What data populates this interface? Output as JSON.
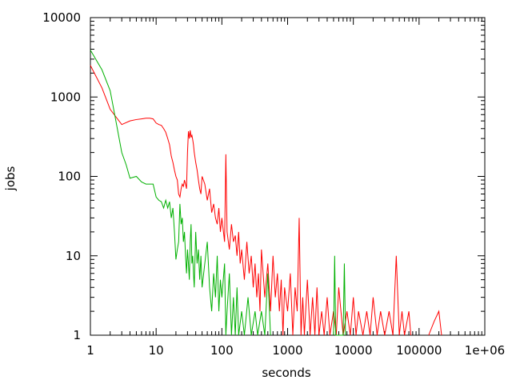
{
  "chart_data": {
    "type": "line",
    "xlabel": "seconds",
    "ylabel": "jobs",
    "xscale": "log",
    "yscale": "log",
    "xlim": [
      1,
      1000000
    ],
    "ylim": [
      1,
      10000
    ],
    "grid": false,
    "legend": "none",
    "x_tick_labels": [
      "1",
      "10",
      "100",
      "1000",
      "10000",
      "100000",
      "1e+06"
    ],
    "y_tick_labels": [
      "1",
      "10",
      "100",
      "1000",
      "10000"
    ],
    "series": [
      {
        "color": "#ff0000",
        "points": [
          [
            1,
            2500
          ],
          [
            1.5,
            1300
          ],
          [
            2,
            700
          ],
          [
            3,
            450
          ],
          [
            4,
            500
          ],
          [
            5,
            520
          ],
          [
            6,
            530
          ],
          [
            7,
            540
          ],
          [
            8,
            540
          ],
          [
            9,
            530
          ],
          [
            10,
            470
          ],
          [
            11,
            450
          ],
          [
            12,
            440
          ],
          [
            13,
            400
          ],
          [
            14,
            360
          ],
          [
            15,
            300
          ],
          [
            16,
            250
          ],
          [
            17,
            180
          ],
          [
            18,
            150
          ],
          [
            19,
            120
          ],
          [
            20,
            100
          ],
          [
            21,
            90
          ],
          [
            22,
            60
          ],
          [
            23,
            55
          ],
          [
            24,
            70
          ],
          [
            25,
            80
          ],
          [
            26,
            75
          ],
          [
            27,
            90
          ],
          [
            28,
            80
          ],
          [
            29,
            70
          ],
          [
            30,
            200
          ],
          [
            31,
            370
          ],
          [
            32,
            300
          ],
          [
            33,
            380
          ],
          [
            34,
            310
          ],
          [
            35,
            330
          ],
          [
            36,
            290
          ],
          [
            37,
            250
          ],
          [
            38,
            200
          ],
          [
            40,
            150
          ],
          [
            42,
            120
          ],
          [
            44,
            90
          ],
          [
            46,
            70
          ],
          [
            48,
            60
          ],
          [
            50,
            100
          ],
          [
            55,
            80
          ],
          [
            60,
            50
          ],
          [
            65,
            70
          ],
          [
            70,
            35
          ],
          [
            75,
            45
          ],
          [
            80,
            30
          ],
          [
            85,
            25
          ],
          [
            90,
            40
          ],
          [
            95,
            20
          ],
          [
            100,
            30
          ],
          [
            110,
            15
          ],
          [
            115,
            190
          ],
          [
            120,
            20
          ],
          [
            130,
            12
          ],
          [
            140,
            25
          ],
          [
            150,
            15
          ],
          [
            160,
            18
          ],
          [
            170,
            10
          ],
          [
            180,
            20
          ],
          [
            190,
            8
          ],
          [
            200,
            12
          ],
          [
            220,
            5
          ],
          [
            240,
            15
          ],
          [
            260,
            6
          ],
          [
            280,
            10
          ],
          [
            300,
            4
          ],
          [
            320,
            8
          ],
          [
            340,
            3
          ],
          [
            360,
            6
          ],
          [
            380,
            2
          ],
          [
            400,
            12
          ],
          [
            450,
            3
          ],
          [
            500,
            8
          ],
          [
            550,
            2
          ],
          [
            600,
            10
          ],
          [
            650,
            3
          ],
          [
            700,
            6
          ],
          [
            750,
            2
          ],
          [
            800,
            5
          ],
          [
            850,
            1
          ],
          [
            900,
            4
          ],
          [
            1000,
            2
          ],
          [
            1100,
            6
          ],
          [
            1200,
            1
          ],
          [
            1300,
            4
          ],
          [
            1400,
            2
          ],
          [
            1500,
            30
          ],
          [
            1600,
            1
          ],
          [
            1700,
            3
          ],
          [
            1800,
            1
          ],
          [
            2000,
            5
          ],
          [
            2200,
            1
          ],
          [
            2400,
            3
          ],
          [
            2600,
            1
          ],
          [
            2800,
            4
          ],
          [
            3000,
            1
          ],
          [
            3300,
            2
          ],
          [
            3600,
            1
          ],
          [
            4000,
            3
          ],
          [
            4400,
            1
          ],
          [
            5000,
            2
          ],
          [
            5500,
            1
          ],
          [
            6000,
            4
          ],
          [
            7000,
            1
          ],
          [
            8000,
            2
          ],
          [
            9000,
            1
          ],
          [
            10000,
            3
          ],
          [
            11000,
            1
          ],
          [
            12000,
            2
          ],
          [
            14000,
            1
          ],
          [
            16000,
            2
          ],
          [
            18000,
            1
          ],
          [
            20000,
            3
          ],
          [
            23000,
            1
          ],
          [
            26000,
            2
          ],
          [
            30000,
            1
          ],
          [
            35000,
            2
          ],
          [
            40000,
            1
          ],
          [
            45000,
            10
          ],
          [
            50000,
            1
          ],
          [
            55000,
            2
          ],
          [
            60000,
            1
          ],
          [
            70000,
            2
          ],
          [
            75000,
            1
          ]
        ]
      },
      {
        "color": "#ff0000",
        "points": [
          [
            140000,
            1
          ],
          [
            170000,
            1.5
          ],
          [
            200000,
            2
          ],
          [
            220000,
            1
          ]
        ]
      },
      {
        "color": "#00b000",
        "points": [
          [
            1,
            3900
          ],
          [
            1.5,
            2200
          ],
          [
            2,
            1200
          ],
          [
            2.5,
            450
          ],
          [
            3,
            200
          ],
          [
            3.5,
            140
          ],
          [
            4,
            95
          ],
          [
            5,
            100
          ],
          [
            6,
            85
          ],
          [
            7,
            80
          ],
          [
            8,
            80
          ],
          [
            9,
            80
          ],
          [
            10,
            55
          ],
          [
            11,
            50
          ],
          [
            12,
            48
          ],
          [
            13,
            40
          ],
          [
            14,
            50
          ],
          [
            15,
            40
          ],
          [
            16,
            48
          ],
          [
            17,
            30
          ],
          [
            18,
            40
          ],
          [
            19,
            20
          ],
          [
            20,
            9
          ],
          [
            21,
            12
          ],
          [
            22,
            15
          ],
          [
            23,
            45
          ],
          [
            24,
            25
          ],
          [
            25,
            30
          ],
          [
            26,
            15
          ],
          [
            27,
            20
          ],
          [
            28,
            10
          ],
          [
            29,
            6
          ],
          [
            30,
            12
          ],
          [
            31,
            8
          ],
          [
            32,
            5
          ],
          [
            33,
            15
          ],
          [
            34,
            25
          ],
          [
            35,
            8
          ],
          [
            36,
            10
          ],
          [
            37,
            6
          ],
          [
            38,
            4
          ],
          [
            40,
            20
          ],
          [
            42,
            8
          ],
          [
            44,
            12
          ],
          [
            46,
            5
          ],
          [
            48,
            10
          ],
          [
            50,
            4
          ],
          [
            55,
            8
          ],
          [
            60,
            15
          ],
          [
            65,
            4
          ],
          [
            70,
            2
          ],
          [
            75,
            6
          ],
          [
            80,
            3
          ],
          [
            85,
            10
          ],
          [
            90,
            2
          ],
          [
            95,
            5
          ],
          [
            100,
            3
          ],
          [
            110,
            8
          ],
          [
            115,
            1
          ],
          [
            120,
            2
          ],
          [
            130,
            6
          ],
          [
            140,
            1
          ],
          [
            150,
            3
          ],
          [
            160,
            1
          ],
          [
            170,
            4
          ],
          [
            180,
            1
          ],
          [
            200,
            2
          ],
          [
            220,
            1
          ],
          [
            250,
            3
          ],
          [
            280,
            1
          ],
          [
            320,
            2
          ],
          [
            350,
            1
          ],
          [
            400,
            2
          ],
          [
            450,
            1
          ],
          [
            500,
            6
          ],
          [
            550,
            1
          ]
        ]
      },
      {
        "color": "#00b000",
        "points": [
          [
            5000,
            1
          ],
          [
            5200,
            10
          ],
          [
            5400,
            1
          ],
          [
            7000,
            1
          ],
          [
            7300,
            8
          ],
          [
            7600,
            1
          ]
        ]
      }
    ]
  }
}
